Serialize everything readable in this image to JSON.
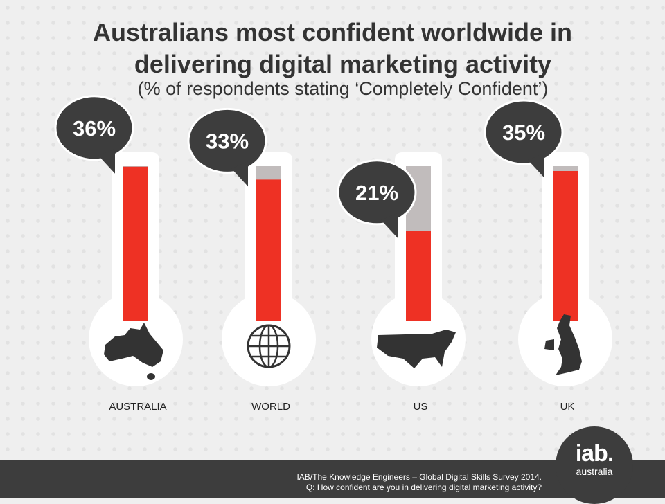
{
  "header": {
    "title_line1": "Australians most confident worldwide in",
    "title_line2": "delivering digital marketing activity",
    "subtitle": "(% of respondents stating ‘Completely Confident’)"
  },
  "chart_data": {
    "type": "bar",
    "categories": [
      "AUSTRALIA",
      "WORLD",
      "US",
      "UK"
    ],
    "values": [
      36,
      33,
      21,
      35
    ],
    "value_labels": [
      "36%",
      "33%",
      "21%",
      "35%"
    ],
    "icons": [
      "australia-map-icon",
      "globe-icon",
      "us-map-icon",
      "uk-map-icon"
    ],
    "unit": "%",
    "ylim": [
      0,
      100
    ]
  },
  "colors": {
    "fill": "#ee3124",
    "track": "#c1bcbc",
    "bubble": "#3d3d3d",
    "bulb": "#ffffff"
  },
  "footer": {
    "source_line1": "IAB/The Knowledge Engineers – Global Digital Skills Survey 2014.",
    "source_line2": "Q: How confident are you in delivering digital marketing activity?"
  },
  "logo": {
    "line1": "iab.",
    "line2": "australia"
  }
}
